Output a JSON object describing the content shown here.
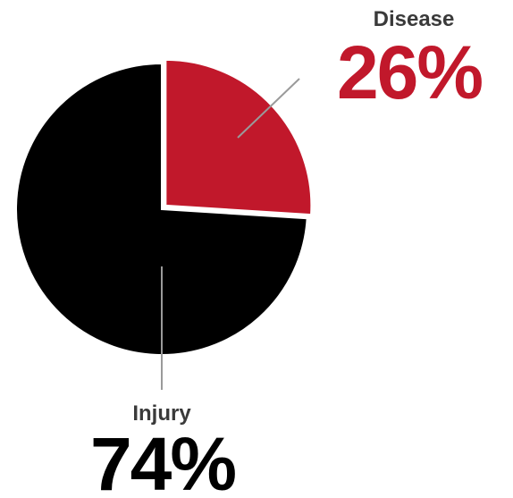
{
  "chart_data": {
    "type": "pie",
    "title": "",
    "legend": "none",
    "start_angle_deg": 0,
    "direction": "clockwise",
    "slices": [
      {
        "name": "Disease",
        "value": 26,
        "value_label": "26%",
        "color": "#c1182b",
        "exploded": true
      },
      {
        "name": "Injury",
        "value": 74,
        "value_label": "74%",
        "color": "#000000",
        "exploded": false
      }
    ]
  }
}
